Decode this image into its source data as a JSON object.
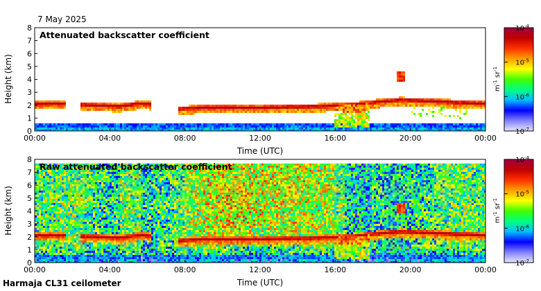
{
  "date": "7 May 2025",
  "footer": "Harmaja CL31 ceilometer",
  "colors": {
    "colormap": [
      "#e8e8ff",
      "#8080ff",
      "#0000ff",
      "#00c0ff",
      "#00ff80",
      "#40ff00",
      "#ffff00",
      "#ffa000",
      "#ff3000",
      "#c00000",
      "#a00040"
    ]
  },
  "chart_data": [
    {
      "type": "heatmap",
      "title": "Attenuated backscatter coefficient",
      "xlabel": "Time (UTC)",
      "ylabel": "Height (km)",
      "x_ticks": [
        "00:00",
        "04:00",
        "08:00",
        "12:00",
        "16:00",
        "20:00",
        "00:00"
      ],
      "xlim_hours": [
        0,
        24
      ],
      "y_ticks": [
        "0",
        "1",
        "2",
        "3",
        "4",
        "5",
        "6",
        "7",
        "8"
      ],
      "ylim_km": [
        0,
        8
      ],
      "colorbar": {
        "label": "m-1 sr-1",
        "ticks": [
          "10-4",
          "10-5",
          "10-6",
          "10-7"
        ],
        "range": [
          1e-07,
          0.0001
        ],
        "scale": "log"
      },
      "cloud_base_km": [
        [
          0,
          2.1
        ],
        [
          1.5,
          2.1
        ],
        [
          3,
          2.0
        ],
        [
          4.5,
          1.9
        ],
        [
          5.5,
          2.1
        ],
        [
          6,
          2.1
        ],
        [
          7.7,
          1.7
        ],
        [
          9,
          1.8
        ],
        [
          12,
          1.8
        ],
        [
          15,
          1.9
        ],
        [
          17,
          2.0
        ],
        [
          18,
          2.2
        ],
        [
          19.5,
          2.4
        ],
        [
          21,
          2.3
        ],
        [
          24,
          2.1
        ]
      ]
    },
    {
      "type": "heatmap",
      "title": "Raw attenuated backscatter coefficient",
      "xlabel": "Time (UTC)",
      "ylabel": "Height (km)",
      "x_ticks": [
        "00:00",
        "04:00",
        "08:00",
        "12:00",
        "16:00",
        "20:00",
        "00:00"
      ],
      "xlim_hours": [
        0,
        24
      ],
      "y_ticks": [
        "0",
        "1",
        "2",
        "3",
        "4",
        "5",
        "6",
        "7",
        "8"
      ],
      "ylim_km": [
        0,
        8
      ],
      "colorbar": {
        "label": "m-1 sr-1",
        "ticks": [
          "10-4",
          "10-5",
          "10-6",
          "10-7"
        ],
        "range": [
          1e-07,
          0.0001
        ],
        "scale": "log"
      },
      "cloud_base_km": [
        [
          0,
          2.1
        ],
        [
          1.5,
          2.1
        ],
        [
          3,
          2.0
        ],
        [
          4.5,
          1.9
        ],
        [
          5.5,
          2.1
        ],
        [
          6,
          2.1
        ],
        [
          7.7,
          1.7
        ],
        [
          9,
          1.8
        ],
        [
          12,
          1.8
        ],
        [
          15,
          1.9
        ],
        [
          17,
          2.0
        ],
        [
          18,
          2.2
        ],
        [
          19.5,
          2.4
        ],
        [
          21,
          2.3
        ],
        [
          24,
          2.1
        ]
      ]
    }
  ]
}
